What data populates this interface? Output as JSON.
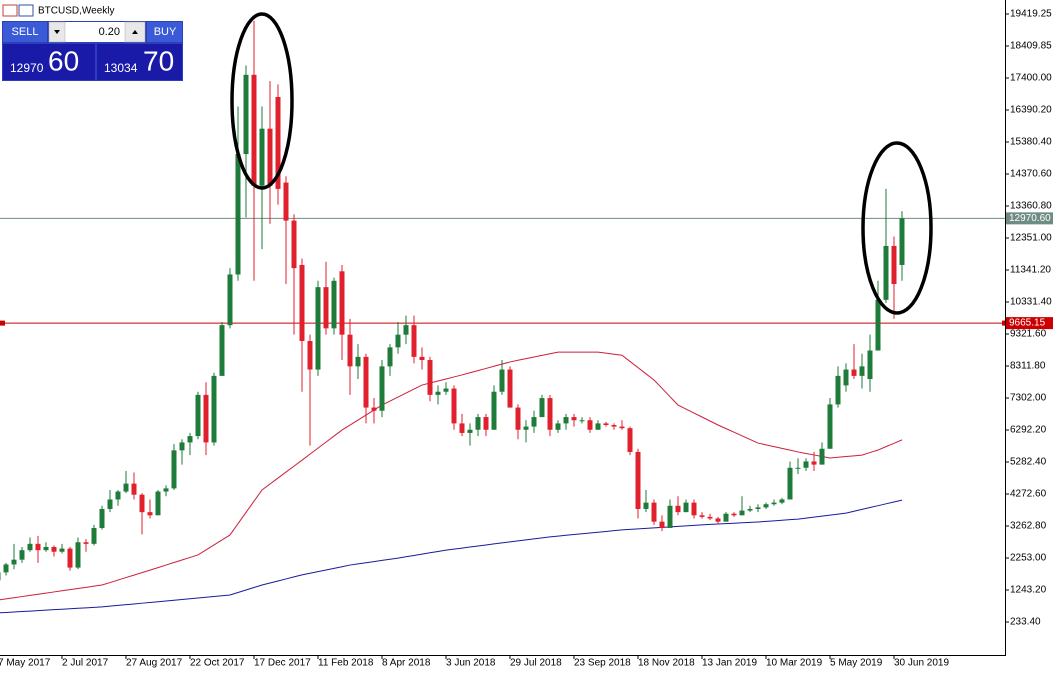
{
  "chart_data": {
    "type": "candlestick",
    "title": "BTCUSD,Weekly",
    "panel": {
      "sell": "SELL",
      "buy": "BUY",
      "lot": "0.20",
      "bid_big": "12970",
      "bid_small": "60",
      "ask_big": "13034",
      "ask_small": "70"
    },
    "categories": [
      "7 May 2017",
      null,
      null,
      null,
      null,
      null,
      null,
      null,
      "2 Jul 2017",
      null,
      null,
      null,
      null,
      null,
      null,
      null,
      "27 Aug 2017",
      null,
      null,
      null,
      null,
      null,
      null,
      null,
      "22 Oct 2017",
      null,
      null,
      null,
      null,
      null,
      null,
      null,
      "17 Dec 2017",
      null,
      null,
      null,
      null,
      null,
      null,
      null,
      "11 Feb 2018",
      null,
      null,
      null,
      null,
      null,
      null,
      null,
      "8 Apr 2018",
      null,
      null,
      null,
      null,
      null,
      null,
      null,
      "3 Jun 2018",
      null,
      null,
      null,
      null,
      null,
      null,
      null,
      "29 Jul 2018",
      null,
      null,
      null,
      null,
      null,
      null,
      null,
      "23 Sep 2018",
      null,
      null,
      null,
      null,
      null,
      null,
      null,
      "18 Nov 2018",
      null,
      null,
      null,
      null,
      null,
      null,
      null,
      "13 Jan 2019",
      null,
      null,
      null,
      null,
      null,
      null,
      null,
      "10 Mar 2019",
      null,
      null,
      null,
      null,
      null,
      null,
      null,
      "5 May 2019",
      null,
      null,
      null,
      null,
      null,
      null,
      null,
      "30 Jun 2019",
      null
    ],
    "ohlc": [
      [
        1550,
        1850,
        1540,
        1800
      ],
      [
        1800,
        2100,
        1700,
        2050
      ],
      [
        2050,
        2700,
        1900,
        2200
      ],
      [
        2200,
        2600,
        2100,
        2500
      ],
      [
        2500,
        2900,
        2450,
        2700
      ],
      [
        2700,
        2950,
        2100,
        2500
      ],
      [
        2500,
        2750,
        2450,
        2600
      ],
      [
        2600,
        2650,
        2300,
        2450
      ],
      [
        2450,
        2700,
        2400,
        2550
      ],
      [
        2550,
        2600,
        1850,
        1950
      ],
      [
        1950,
        2900,
        1900,
        2750
      ],
      [
        2750,
        2850,
        2450,
        2700
      ],
      [
        2700,
        3300,
        2650,
        3200
      ],
      [
        3200,
        3900,
        3150,
        3800
      ],
      [
        3800,
        4400,
        3700,
        4100
      ],
      [
        4100,
        4400,
        3900,
        4350
      ],
      [
        4350,
        5000,
        4300,
        4600
      ],
      [
        4600,
        4950,
        4100,
        4250
      ],
      [
        4250,
        4300,
        3000,
        3700
      ],
      [
        3700,
        4100,
        3500,
        3600
      ],
      [
        3600,
        4400,
        3600,
        4350
      ],
      [
        4350,
        4550,
        4200,
        4450
      ],
      [
        4450,
        5850,
        4400,
        5650
      ],
      [
        5650,
        6000,
        5200,
        5900
      ],
      [
        5900,
        6200,
        5500,
        6100
      ],
      [
        6100,
        7500,
        6000,
        7400
      ],
      [
        7400,
        7800,
        5500,
        5900
      ],
      [
        5900,
        8100,
        5800,
        8000
      ],
      [
        8000,
        9700,
        8000,
        9600
      ],
      [
        9600,
        11400,
        9500,
        11200
      ],
      [
        11200,
        16500,
        11000,
        15000
      ],
      [
        15000,
        17800,
        13000,
        17500
      ],
      [
        17500,
        19200,
        11000,
        14000
      ],
      [
        14000,
        16500,
        12000,
        15800
      ],
      [
        15800,
        17300,
        12800,
        14000
      ],
      [
        16800,
        17200,
        13400,
        13900
      ],
      [
        14100,
        14300,
        10900,
        12900
      ],
      [
        12900,
        13100,
        9300,
        11400
      ],
      [
        11500,
        11700,
        7500,
        9100
      ],
      [
        9100,
        9300,
        5800,
        8200
      ],
      [
        8200,
        11000,
        8000,
        10800
      ],
      [
        10800,
        11600,
        9300,
        9500
      ],
      [
        9500,
        11100,
        9300,
        11000
      ],
      [
        11300,
        11500,
        8500,
        9300
      ],
      [
        9300,
        9800,
        7400,
        8300
      ],
      [
        8300,
        9000,
        7900,
        8600
      ],
      [
        8600,
        8700,
        6500,
        7000
      ],
      [
        7000,
        7300,
        6500,
        6900
      ],
      [
        6900,
        8500,
        6700,
        8300
      ],
      [
        8300,
        9000,
        8000,
        8900
      ],
      [
        8900,
        9700,
        8700,
        9300
      ],
      [
        9300,
        9900,
        9000,
        9600
      ],
      [
        9600,
        9900,
        8400,
        8600
      ],
      [
        8600,
        8900,
        8200,
        8500
      ],
      [
        8500,
        8600,
        7200,
        7400
      ],
      [
        7400,
        7700,
        7100,
        7500
      ],
      [
        7500,
        7800,
        7400,
        7600
      ],
      [
        7600,
        7700,
        6300,
        6500
      ],
      [
        6500,
        6800,
        6100,
        6200
      ],
      [
        6200,
        6500,
        5800,
        6300
      ],
      [
        6300,
        6800,
        6100,
        6700
      ],
      [
        6700,
        6800,
        6100,
        6300
      ],
      [
        6300,
        7700,
        6300,
        7500
      ],
      [
        7500,
        8500,
        7400,
        8200
      ],
      [
        8200,
        8300,
        7000,
        7000
      ],
      [
        7000,
        7100,
        6000,
        6300
      ],
      [
        6300,
        6600,
        5900,
        6400
      ],
      [
        6400,
        6900,
        6200,
        6700
      ],
      [
        6700,
        7400,
        6700,
        7300
      ],
      [
        7300,
        7400,
        6100,
        6300
      ],
      [
        6300,
        6600,
        6200,
        6500
      ],
      [
        6500,
        6800,
        6300,
        6700
      ],
      [
        6700,
        6800,
        6400,
        6600
      ],
      [
        6600,
        6700,
        6500,
        6600
      ],
      [
        6600,
        6700,
        6200,
        6300
      ],
      [
        6300,
        6600,
        6300,
        6500
      ],
      [
        6500,
        6550,
        6400,
        6450
      ],
      [
        6450,
        6500,
        6300,
        6400
      ],
      [
        6400,
        6600,
        6300,
        6350
      ],
      [
        6350,
        6400,
        5500,
        5600
      ],
      [
        5600,
        5700,
        3500,
        3800
      ],
      [
        3800,
        4400,
        3700,
        4000
      ],
      [
        4000,
        4100,
        3300,
        3400
      ],
      [
        3400,
        3600,
        3100,
        3200
      ],
      [
        3200,
        4100,
        3200,
        3900
      ],
      [
        3900,
        4200,
        3600,
        3700
      ],
      [
        3700,
        4100,
        3700,
        4000
      ],
      [
        4000,
        4100,
        3500,
        3600
      ],
      [
        3600,
        3700,
        3500,
        3550
      ],
      [
        3550,
        3650,
        3450,
        3500
      ],
      [
        3500,
        3550,
        3350,
        3400
      ],
      [
        3400,
        3700,
        3400,
        3650
      ],
      [
        3650,
        3700,
        3550,
        3600
      ],
      [
        3600,
        4200,
        3600,
        3750
      ],
      [
        3750,
        3900,
        3700,
        3800
      ],
      [
        3800,
        3950,
        3700,
        3850
      ],
      [
        3850,
        4000,
        3800,
        3950
      ],
      [
        3950,
        4100,
        3900,
        4000
      ],
      [
        4000,
        4150,
        3950,
        4100
      ],
      [
        4100,
        5300,
        4100,
        5100
      ],
      [
        5100,
        5400,
        4900,
        5100
      ],
      [
        5100,
        5400,
        5000,
        5300
      ],
      [
        5300,
        5600,
        5000,
        5200
      ],
      [
        5200,
        5900,
        5200,
        5700
      ],
      [
        5700,
        7300,
        5700,
        7100
      ],
      [
        7100,
        8300,
        7000,
        8000
      ],
      [
        7700,
        8400,
        7500,
        8200
      ],
      [
        8200,
        9000,
        7900,
        8000
      ],
      [
        8000,
        8700,
        7600,
        8300
      ],
      [
        7900,
        9300,
        7500,
        8800
      ],
      [
        8800,
        11000,
        8800,
        10400
      ],
      [
        10400,
        13900,
        10300,
        12100
      ],
      [
        12100,
        12400,
        9800,
        10900
      ],
      [
        11500,
        13200,
        11000,
        12970.6
      ]
    ],
    "up_color": "#1e7b3a",
    "down_color": "#e0202c",
    "moving_averages": [
      {
        "color": "#cc1f3a",
        "values": [
          927,
          963,
          1000,
          1036,
          1073,
          1109,
          1145,
          1182,
          1218,
          1254,
          1291,
          1327,
          1364,
          1400,
          1478,
          1557,
          1635,
          1713,
          1792,
          1870,
          1950,
          2030,
          2110,
          2190,
          2270,
          2350,
          2508,
          2665,
          2823,
          2980,
          3335,
          3690,
          4045,
          4400,
          4588,
          4776,
          4964,
          5152,
          5340,
          5530,
          5720,
          5910,
          6100,
          6290,
          6448,
          6606,
          6764,
          6922,
          7080,
          7206,
          7332,
          7458,
          7584,
          7710,
          7774,
          7838,
          7902,
          7966,
          8030,
          8098,
          8166,
          8235,
          8303,
          8371,
          8440,
          8492,
          8543,
          8595,
          8647,
          8698,
          8750,
          8750,
          8750,
          8750,
          8750,
          8750,
          8717,
          8683,
          8650,
          8455,
          8260,
          8065,
          7870,
          7607,
          7343,
          7080,
          6954,
          6828,
          6702,
          6576,
          6450,
          6336,
          6222,
          6108,
          5994,
          5880,
          5824,
          5768,
          5712,
          5656,
          5600,
          5552,
          5505,
          5457,
          5410,
          5432,
          5455,
          5477,
          5500,
          5580,
          5660,
          5767,
          5873,
          5980
        ]
      },
      {
        "color": "#1a1a9c",
        "values": [
          520,
          535,
          549,
          564,
          578,
          593,
          608,
          622,
          637,
          652,
          666,
          681,
          695,
          710,
          733,
          757,
          780,
          803,
          827,
          850,
          873,
          897,
          920,
          943,
          967,
          990,
          1014,
          1038,
          1061,
          1085,
          1164,
          1243,
          1321,
          1400,
          1464,
          1528,
          1592,
          1656,
          1720,
          1772,
          1823,
          1875,
          1927,
          1978,
          2030,
          2067,
          2103,
          2140,
          2177,
          2213,
          2250,
          2292,
          2333,
          2375,
          2417,
          2458,
          2500,
          2533,
          2566,
          2599,
          2631,
          2664,
          2697,
          2730,
          2762,
          2793,
          2825,
          2857,
          2888,
          2920,
          2944,
          2969,
          2993,
          3018,
          3042,
          3067,
          3091,
          3116,
          3140,
          3156,
          3172,
          3188,
          3204,
          3220,
          3236,
          3252,
          3268,
          3284,
          3300,
          3313,
          3326,
          3339,
          3351,
          3364,
          3377,
          3390,
          3408,
          3426,
          3444,
          3462,
          3480,
          3512,
          3543,
          3575,
          3607,
          3638,
          3670,
          3729,
          3787,
          3846,
          3904,
          3963,
          4021,
          4080
        ]
      }
    ],
    "price_lines": [
      {
        "value": 12970.6,
        "label": "12970.60",
        "color": "#6f8c84"
      },
      {
        "value": 9665.15,
        "label": "9665.15",
        "color": "#cc0000"
      }
    ],
    "ylim": [
      -808,
      19861
    ],
    "yticks": [
      19419.25,
      18409.85,
      {
        "value": 17400,
        "label": "17400.00"
      },
      {
        "value": 16390.2,
        "label": "16390.20"
      },
      {
        "value": 15380.4,
        "label": "15380.40"
      },
      {
        "value": 14370.6,
        "label": "14370.60"
      },
      {
        "value": 13360.8,
        "label": "13360.80"
      },
      {
        "value": 12351,
        "label": "12351.00"
      },
      {
        "value": 11341.2,
        "label": "11341.20"
      },
      {
        "value": 10331.4,
        "label": "10331.40"
      },
      {
        "value": 9321.6,
        "label": "9321.60"
      },
      {
        "value": 8311.8,
        "label": "8311.80"
      },
      {
        "value": 7302,
        "label": "7302.00"
      },
      {
        "value": 6292.2,
        "label": "6292.20"
      },
      {
        "value": 5282.4,
        "label": "5282.40"
      },
      {
        "value": 4272.6,
        "label": "4272.60"
      },
      {
        "value": 3262.8,
        "label": "3262.80"
      },
      {
        "value": 2253,
        "label": "2253.00"
      },
      {
        "value": 1243.2,
        "label": "1243.20"
      },
      {
        "value": 233.4,
        "label": "233.40"
      }
    ]
  }
}
